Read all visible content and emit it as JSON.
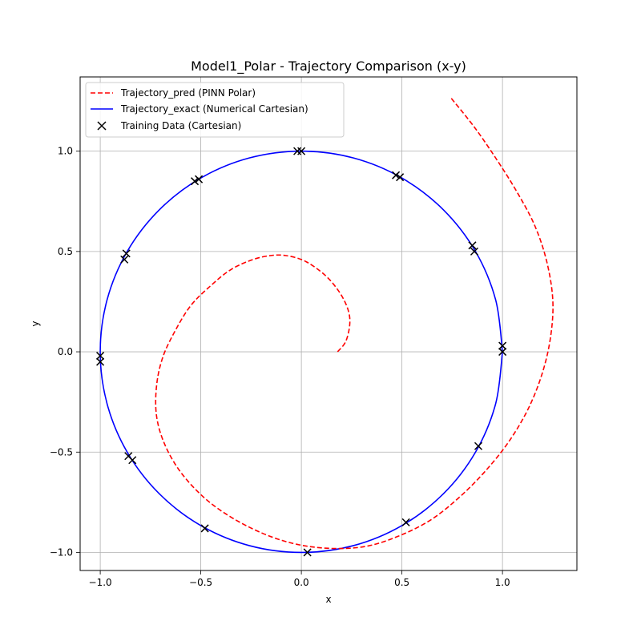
{
  "chart_data": {
    "type": "line",
    "title": "Model1_Polar - Trajectory Comparison (x-y)",
    "xlabel": "x",
    "ylabel": "y",
    "xlim": [
      -1.1,
      1.37
    ],
    "ylim": [
      -1.09,
      1.37
    ],
    "xticks": [
      -1.0,
      -0.5,
      0.0,
      0.5,
      1.0
    ],
    "xtick_labels": [
      "−1.0",
      "−0.5",
      "0.0",
      "0.5",
      "1.0"
    ],
    "yticks": [
      -1.0,
      -0.5,
      0.0,
      0.5,
      1.0
    ],
    "ytick_labels": [
      "−1.0",
      "−0.5",
      "0.0",
      "0.5",
      "1.0"
    ],
    "grid": true,
    "legend_position": "top-left",
    "series": [
      {
        "name": "Trajectory_pred (PINN Polar)",
        "kind": "line",
        "style": "dashed",
        "color": "#ff0000",
        "x": [
          0.18,
          0.22,
          0.24,
          0.235,
          0.2,
          0.14,
          0.07,
          0.0,
          -0.08,
          -0.15,
          -0.24,
          -0.35,
          -0.45,
          -0.55,
          -0.63,
          -0.69,
          -0.72,
          -0.72,
          -0.68,
          -0.6,
          -0.48,
          -0.34,
          -0.18,
          -0.02,
          0.15,
          0.32,
          0.48,
          0.64,
          0.78,
          0.91,
          1.03,
          1.13,
          1.2,
          1.24,
          1.25,
          1.22,
          1.16,
          1.07,
          0.97,
          0.86,
          0.74
        ],
        "y": [
          0.0,
          0.05,
          0.13,
          0.2,
          0.28,
          0.36,
          0.42,
          0.46,
          0.48,
          0.48,
          0.46,
          0.41,
          0.33,
          0.23,
          0.1,
          -0.03,
          -0.17,
          -0.32,
          -0.46,
          -0.6,
          -0.73,
          -0.83,
          -0.91,
          -0.96,
          -0.98,
          -0.97,
          -0.92,
          -0.84,
          -0.73,
          -0.6,
          -0.45,
          -0.28,
          -0.1,
          0.08,
          0.26,
          0.45,
          0.63,
          0.8,
          0.96,
          1.12,
          1.27
        ]
      },
      {
        "name": "Trajectory_exact (Numerical Cartesian)",
        "kind": "line",
        "style": "solid",
        "color": "#0000ff",
        "x": [
          1.0,
          0.966,
          0.866,
          0.707,
          0.5,
          0.259,
          0.0,
          -0.259,
          -0.5,
          -0.707,
          -0.866,
          -0.966,
          -1.0,
          -0.966,
          -0.866,
          -0.707,
          -0.5,
          -0.259,
          0.0,
          0.259,
          0.5,
          0.707,
          0.866,
          0.966,
          1.0
        ],
        "y": [
          0.0,
          0.259,
          0.5,
          0.707,
          0.866,
          0.966,
          1.0,
          0.966,
          0.866,
          0.707,
          0.5,
          0.259,
          0.0,
          -0.259,
          -0.5,
          -0.707,
          -0.866,
          -0.966,
          -1.0,
          -0.966,
          -0.866,
          -0.707,
          -0.5,
          -0.259,
          0.0
        ]
      },
      {
        "name": "Training Data (Cartesian)",
        "kind": "scatter",
        "marker": "x",
        "color": "#000000",
        "x": [
          1.0,
          1.0,
          0.86,
          0.85,
          0.49,
          0.47,
          0.0,
          -0.02,
          -0.51,
          -0.53,
          -0.87,
          -0.88,
          -1.0,
          -1.0,
          -0.86,
          -0.84,
          -0.48,
          0.03,
          0.52,
          0.88
        ],
        "y": [
          0.0,
          0.03,
          0.5,
          0.53,
          0.87,
          0.88,
          1.0,
          1.0,
          0.86,
          0.85,
          0.49,
          0.46,
          -0.02,
          -0.05,
          -0.52,
          -0.54,
          -0.88,
          -1.0,
          -0.85,
          -0.47
        ]
      }
    ]
  }
}
